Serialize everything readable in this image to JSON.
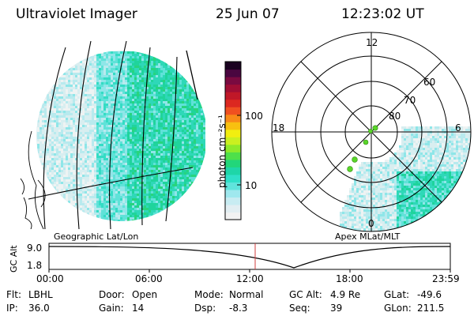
{
  "header": {
    "instrument": "Ultraviolet Imager",
    "date": "25 Jun 07",
    "time": "12:23:02 UT"
  },
  "left_panel": {
    "caption": "Geographic Lat/Lon"
  },
  "colorbar": {
    "unit_label": "photon cm⁻²s⁻¹",
    "scale": "log",
    "ticks": [
      "100",
      "10"
    ],
    "colors": [
      "#f2f2f2",
      "#e2eef2",
      "#c8ecf2",
      "#9fe8ee",
      "#5fe4dc",
      "#2fe0c8",
      "#1ed6a8",
      "#22d67a",
      "#4ee04a",
      "#8eea2a",
      "#caf020",
      "#f2ee10",
      "#f8c010",
      "#f88a18",
      "#f05020",
      "#dc2820",
      "#c01828",
      "#a00e34",
      "#7a0a40",
      "#4a0640",
      "#1a0220"
    ]
  },
  "polar_panel": {
    "caption": "Apex MLat/MLT",
    "mlt_labels": [
      "12",
      "18",
      "6",
      "0"
    ],
    "lat_labels": [
      "60",
      "70",
      "80"
    ]
  },
  "gc_alt_plot": {
    "ylabel": "GC Alt",
    "y_ticks": [
      "9.0",
      "1.8"
    ],
    "x_ticks": [
      "00:00",
      "06:00",
      "12:00",
      "18:00",
      "23:59"
    ],
    "marker_time": "12:23",
    "marker_color": "#d23c3c"
  },
  "status": {
    "rows": [
      [
        {
          "key": "Flt:",
          "val": "LBHL"
        },
        {
          "key": "Door:",
          "val": "Open"
        },
        {
          "key": "Mode:",
          "val": "Normal"
        },
        {
          "key": "GC Alt:",
          "val": "4.9 Re"
        },
        {
          "key": "GLat:",
          "val": "-49.6"
        }
      ],
      [
        {
          "key": "IP:",
          "val": "36.0"
        },
        {
          "key": "Gain:",
          "val": "14"
        },
        {
          "key": "Dsp:",
          "val": "-8.3"
        },
        {
          "key": "Seq:",
          "val": "39"
        },
        {
          "key": "GLon:",
          "val": "211.5"
        }
      ]
    ]
  }
}
